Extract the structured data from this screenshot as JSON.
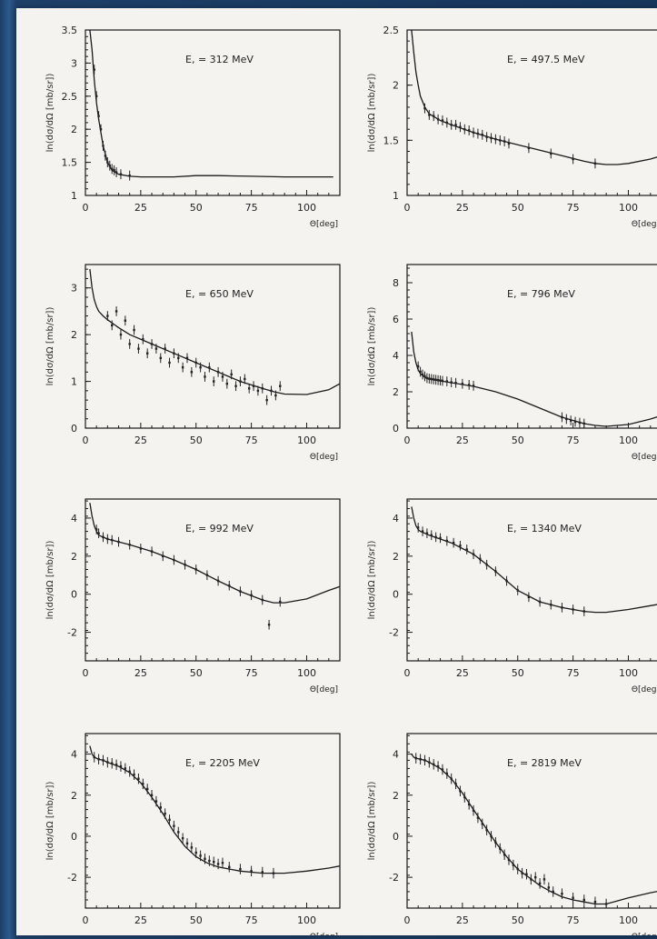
{
  "chart_data": [
    {
      "type": "line",
      "energy_label": "E, = 312 MeV",
      "xlabel": "Θ[deg]",
      "ylabel": "ln(dσ/dΩ [mb/sr])",
      "xlim": [
        0,
        115
      ],
      "ylim": [
        1,
        3.5
      ],
      "xticks": [
        "0",
        "25",
        "50",
        "75",
        "100"
      ],
      "yticks": [
        "1",
        "1.5",
        "2",
        "2.5",
        "3",
        "3.5"
      ],
      "ytick_values": [
        1,
        1.5,
        2,
        2.5,
        3,
        3.5
      ],
      "curve": {
        "x": [
          2,
          3,
          4,
          5,
          6,
          8,
          10,
          12,
          15,
          20,
          25,
          40,
          50,
          60,
          75,
          90,
          100,
          112
        ],
        "y": [
          3.5,
          3.2,
          2.75,
          2.4,
          2.15,
          1.75,
          1.5,
          1.38,
          1.32,
          1.29,
          1.28,
          1.28,
          1.3,
          1.3,
          1.29,
          1.28,
          1.28,
          1.28
        ]
      },
      "points": {
        "x": [
          4,
          5,
          6,
          7,
          8,
          9,
          10,
          11,
          12,
          13,
          14,
          16,
          20
        ],
        "y": [
          2.9,
          2.5,
          2.2,
          2.0,
          1.75,
          1.6,
          1.5,
          1.45,
          1.4,
          1.38,
          1.35,
          1.32,
          1.3
        ]
      }
    },
    {
      "type": "line",
      "energy_label": "E, = 497.5 MeV",
      "xlabel": "Θ[deg]",
      "ylabel": "ln(dσ/dΩ [mb/sr])",
      "xlim": [
        0,
        115
      ],
      "ylim": [
        1,
        2.5
      ],
      "xticks": [
        "0",
        "25",
        "50",
        "75",
        "100"
      ],
      "yticks": [
        "1",
        "1.5",
        "2",
        "2.5"
      ],
      "ytick_values": [
        1,
        1.5,
        2,
        2.5
      ],
      "curve": {
        "x": [
          2,
          3,
          4,
          5,
          6,
          8,
          10,
          15,
          20,
          30,
          40,
          50,
          60,
          70,
          80,
          85,
          90,
          95,
          100,
          110,
          115
        ],
        "y": [
          2.5,
          2.3,
          2.12,
          2.0,
          1.9,
          1.8,
          1.74,
          1.68,
          1.64,
          1.57,
          1.51,
          1.46,
          1.41,
          1.36,
          1.31,
          1.29,
          1.28,
          1.28,
          1.29,
          1.33,
          1.36
        ]
      },
      "points": {
        "x": [
          8,
          10,
          12,
          14,
          16,
          18,
          20,
          22,
          24,
          26,
          28,
          30,
          32,
          34,
          36,
          38,
          40,
          42,
          44,
          46,
          55,
          65,
          75,
          85
        ],
        "y": [
          1.79,
          1.73,
          1.72,
          1.69,
          1.68,
          1.66,
          1.64,
          1.64,
          1.62,
          1.6,
          1.59,
          1.57,
          1.56,
          1.55,
          1.53,
          1.52,
          1.51,
          1.5,
          1.49,
          1.47,
          1.43,
          1.38,
          1.33,
          1.29
        ]
      }
    },
    {
      "type": "line",
      "energy_label": "E, = 650 MeV",
      "xlabel": "Θ[deg]",
      "ylabel": "ln(dσ/dΩ [mb/sr])",
      "xlim": [
        0,
        115
      ],
      "ylim": [
        0,
        3.5
      ],
      "xticks": [
        "0",
        "25",
        "50",
        "75",
        "100"
      ],
      "yticks": [
        "0",
        "1",
        "2",
        "3"
      ],
      "ytick_values": [
        0,
        1,
        2,
        3
      ],
      "curve": {
        "x": [
          2,
          3,
          4,
          5,
          6,
          8,
          10,
          15,
          20,
          30,
          40,
          50,
          60,
          70,
          80,
          85,
          90,
          100,
          110,
          115
        ],
        "y": [
          3.4,
          3.0,
          2.75,
          2.6,
          2.5,
          2.4,
          2.32,
          2.15,
          2.0,
          1.8,
          1.6,
          1.4,
          1.2,
          1.0,
          0.85,
          0.78,
          0.73,
          0.72,
          0.82,
          0.95
        ]
      },
      "points": {
        "x": [
          10,
          12,
          14,
          16,
          18,
          20,
          22,
          24,
          26,
          28,
          30,
          32,
          34,
          36,
          38,
          40,
          42,
          44,
          46,
          48,
          50,
          52,
          54,
          56,
          58,
          60,
          62,
          64,
          66,
          68,
          70,
          72,
          74,
          76,
          78,
          80,
          82,
          84,
          86,
          88
        ],
        "y": [
          2.4,
          2.2,
          2.5,
          2.0,
          2.3,
          1.8,
          2.1,
          1.7,
          1.9,
          1.6,
          1.8,
          1.7,
          1.5,
          1.7,
          1.4,
          1.6,
          1.5,
          1.3,
          1.5,
          1.2,
          1.4,
          1.3,
          1.1,
          1.3,
          1.0,
          1.2,
          1.1,
          0.95,
          1.15,
          0.9,
          1.0,
          1.05,
          0.85,
          0.9,
          0.8,
          0.85,
          0.6,
          0.8,
          0.7,
          0.9
        ]
      }
    },
    {
      "type": "line",
      "energy_label": "E, = 796 MeV",
      "xlabel": "Θ[deg]",
      "ylabel": "ln(dσ/dΩ [mb/sr])",
      "xlim": [
        0,
        115
      ],
      "ylim": [
        0,
        9
      ],
      "xticks": [
        "0",
        "25",
        "50",
        "75",
        "100"
      ],
      "yticks": [
        "0",
        "2",
        "4",
        "6",
        "8"
      ],
      "ytick_values": [
        0,
        2,
        4,
        6,
        8
      ],
      "curve": {
        "x": [
          2,
          3,
          4,
          5,
          6,
          8,
          10,
          15,
          20,
          30,
          40,
          50,
          60,
          70,
          80,
          85,
          90,
          100,
          110,
          115
        ],
        "y": [
          5.3,
          4.2,
          3.6,
          3.2,
          3.0,
          2.8,
          2.7,
          2.6,
          2.5,
          2.3,
          2.0,
          1.6,
          1.1,
          0.6,
          0.25,
          0.15,
          0.1,
          0.2,
          0.5,
          0.7
        ]
      },
      "points": {
        "x": [
          5,
          6,
          7,
          8,
          9,
          10,
          11,
          12,
          13,
          14,
          15,
          16,
          18,
          20,
          22,
          25,
          28,
          30,
          70,
          72,
          74,
          76,
          78,
          80
        ],
        "y": [
          3.4,
          3.1,
          2.95,
          2.85,
          2.75,
          2.72,
          2.7,
          2.68,
          2.66,
          2.64,
          2.62,
          2.6,
          2.57,
          2.52,
          2.49,
          2.44,
          2.38,
          2.33,
          0.6,
          0.5,
          0.42,
          0.35,
          0.3,
          0.25
        ]
      }
    },
    {
      "type": "line",
      "energy_label": "E, = 992 MeV",
      "xlabel": "Θ[deg]",
      "ylabel": "ln(dσ/dΩ [mb/sr])",
      "xlim": [
        0,
        115
      ],
      "ylim": [
        -3.5,
        5
      ],
      "xticks": [
        "0",
        "25",
        "50",
        "75",
        "100"
      ],
      "yticks": [
        "-2",
        "0",
        "2",
        "4"
      ],
      "ytick_values": [
        -2,
        0,
        2,
        4
      ],
      "curve": {
        "x": [
          2,
          3,
          4,
          5,
          6,
          8,
          10,
          15,
          20,
          30,
          40,
          50,
          60,
          70,
          80,
          85,
          90,
          100,
          110,
          115
        ],
        "y": [
          4.8,
          4.1,
          3.6,
          3.3,
          3.1,
          3.0,
          2.9,
          2.75,
          2.6,
          2.25,
          1.8,
          1.3,
          0.7,
          0.15,
          -0.3,
          -0.45,
          -0.45,
          -0.25,
          0.2,
          0.4
        ]
      },
      "points": {
        "x": [
          5,
          6,
          8,
          10,
          12,
          15,
          20,
          25,
          30,
          35,
          40,
          45,
          50,
          55,
          60,
          65,
          70,
          75,
          80,
          83,
          88
        ],
        "y": [
          3.4,
          3.2,
          3.0,
          2.9,
          2.85,
          2.75,
          2.6,
          2.4,
          2.25,
          2.0,
          1.8,
          1.55,
          1.3,
          1.0,
          0.7,
          0.45,
          0.15,
          -0.05,
          -0.3,
          -1.6,
          -0.4
        ]
      }
    },
    {
      "type": "line",
      "energy_label": "E, = 1340 MeV",
      "xlabel": "Θ[deg]",
      "ylabel": "ln(dσ/dΩ [mb/sr])",
      "xlim": [
        0,
        115
      ],
      "ylim": [
        -3.5,
        5
      ],
      "xticks": [
        "0",
        "25",
        "50",
        "75",
        "100"
      ],
      "yticks": [
        "-2",
        "0",
        "2",
        "4"
      ],
      "ytick_values": [
        -2,
        0,
        2,
        4
      ],
      "curve": {
        "x": [
          2,
          3,
          4,
          5,
          6,
          8,
          10,
          15,
          20,
          30,
          40,
          50,
          60,
          70,
          80,
          85,
          90,
          100,
          110,
          115
        ],
        "y": [
          4.6,
          4.0,
          3.6,
          3.4,
          3.3,
          3.2,
          3.1,
          2.9,
          2.7,
          2.1,
          1.2,
          0.2,
          -0.4,
          -0.7,
          -0.9,
          -0.95,
          -0.95,
          -0.8,
          -0.6,
          -0.5
        ]
      },
      "points": {
        "x": [
          5,
          7,
          9,
          11,
          13,
          15,
          18,
          21,
          24,
          27,
          30,
          33,
          36,
          40,
          45,
          50,
          55,
          60,
          65,
          70,
          75,
          80
        ],
        "y": [
          3.5,
          3.3,
          3.2,
          3.1,
          3.0,
          2.95,
          2.8,
          2.7,
          2.55,
          2.35,
          2.1,
          1.85,
          1.55,
          1.2,
          0.7,
          0.2,
          -0.15,
          -0.4,
          -0.55,
          -0.7,
          -0.8,
          -0.9
        ]
      }
    },
    {
      "type": "line",
      "energy_label": "E, = 2205 MeV",
      "xlabel": "Θ[deg]",
      "ylabel": "ln(dσ/dΩ [mb/sr])",
      "xlim": [
        0,
        115
      ],
      "ylim": [
        -3.5,
        5
      ],
      "xticks": [
        "0",
        "25",
        "50",
        "75",
        "100"
      ],
      "yticks": [
        "-2",
        "0",
        "2",
        "4"
      ],
      "ytick_values": [
        -2,
        0,
        2,
        4
      ],
      "curve": {
        "x": [
          2,
          3,
          4,
          5,
          6,
          8,
          10,
          15,
          20,
          25,
          30,
          35,
          40,
          45,
          50,
          55,
          60,
          70,
          80,
          90,
          100,
          110,
          115
        ],
        "y": [
          4.4,
          4.0,
          3.85,
          3.8,
          3.75,
          3.7,
          3.6,
          3.4,
          3.1,
          2.6,
          1.9,
          1.1,
          0.2,
          -0.5,
          -1.0,
          -1.3,
          -1.5,
          -1.7,
          -1.8,
          -1.8,
          -1.7,
          -1.55,
          -1.45
        ]
      },
      "points": {
        "x": [
          4,
          6,
          8,
          10,
          12,
          14,
          16,
          18,
          20,
          22,
          24,
          26,
          28,
          30,
          32,
          34,
          36,
          38,
          40,
          42,
          44,
          46,
          48,
          50,
          52,
          54,
          56,
          58,
          60,
          62,
          65,
          70,
          75,
          80,
          85
        ],
        "y": [
          3.85,
          3.75,
          3.7,
          3.6,
          3.55,
          3.48,
          3.4,
          3.3,
          3.15,
          3.0,
          2.8,
          2.55,
          2.3,
          2.0,
          1.7,
          1.4,
          1.1,
          0.8,
          0.5,
          0.2,
          -0.1,
          -0.35,
          -0.55,
          -0.8,
          -0.95,
          -1.1,
          -1.2,
          -1.25,
          -1.35,
          -1.3,
          -1.5,
          -1.6,
          -1.7,
          -1.75,
          -1.8
        ]
      }
    },
    {
      "type": "line",
      "energy_label": "E, = 2819 MeV",
      "xlabel": "Θ[deg]",
      "ylabel": "ln(dσ/dΩ [mb/sr])",
      "xlim": [
        0,
        115
      ],
      "ylim": [
        -3.5,
        5
      ],
      "xticks": [
        "0",
        "25",
        "50",
        "75",
        "100"
      ],
      "yticks": [
        "-2",
        "0",
        "2",
        "4"
      ],
      "ytick_values": [
        -2,
        0,
        2,
        4
      ],
      "curve": {
        "x": [
          2,
          3,
          4,
          6,
          8,
          10,
          15,
          20,
          25,
          30,
          35,
          40,
          45,
          50,
          55,
          60,
          65,
          70,
          75,
          80,
          85,
          90,
          100,
          110,
          115
        ],
        "y": [
          4.0,
          3.85,
          3.8,
          3.75,
          3.7,
          3.6,
          3.3,
          2.8,
          2.1,
          1.3,
          0.5,
          -0.3,
          -1.0,
          -1.6,
          -2.0,
          -2.4,
          -2.7,
          -2.95,
          -3.1,
          -3.2,
          -3.3,
          -3.3,
          -3.0,
          -2.75,
          -2.65
        ]
      },
      "points": {
        "x": [
          4,
          6,
          8,
          10,
          12,
          14,
          16,
          18,
          20,
          22,
          24,
          26,
          28,
          30,
          32,
          34,
          36,
          38,
          40,
          42,
          44,
          46,
          48,
          50,
          52,
          54,
          56,
          58,
          60,
          62,
          64,
          66,
          70,
          75,
          80,
          85,
          90
        ],
        "y": [
          3.8,
          3.75,
          3.7,
          3.6,
          3.5,
          3.4,
          3.25,
          3.05,
          2.8,
          2.55,
          2.2,
          1.9,
          1.55,
          1.25,
          0.9,
          0.6,
          0.3,
          0.0,
          -0.3,
          -0.6,
          -0.9,
          -1.15,
          -1.4,
          -1.6,
          -1.8,
          -1.85,
          -2.1,
          -2.0,
          -2.3,
          -2.1,
          -2.5,
          -2.7,
          -2.8,
          -3.0,
          -3.1,
          -3.2,
          -3.3
        ]
      }
    }
  ]
}
